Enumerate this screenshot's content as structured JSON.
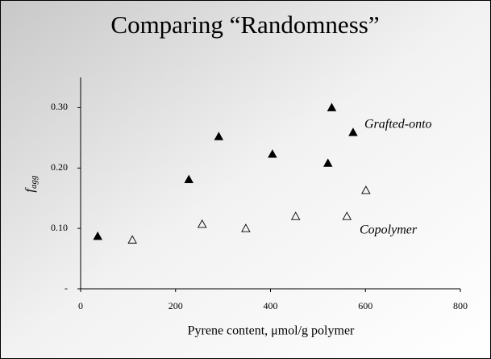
{
  "chart_data": {
    "type": "scatter",
    "title": "Comparing “Randomness”",
    "x_label": "Pyrene content, μmol/g polymer",
    "y_label": {
      "main": "f",
      "subscript": "agg"
    },
    "xlim": [
      0,
      800
    ],
    "xticks": [
      0,
      200,
      400,
      600,
      800
    ],
    "ylim": [
      0,
      0.35
    ],
    "yticks": [
      {
        "value": 0,
        "label": "-"
      },
      {
        "value": 0.1,
        "label": "0.10"
      },
      {
        "value": 0.2,
        "label": "0.20"
      },
      {
        "value": 0.3,
        "label": "0.30"
      }
    ],
    "series": [
      {
        "name": "Grafted-onto",
        "color": "#000000",
        "fill": "#000000",
        "x": [
          36,
          228,
          291,
          404,
          521,
          529,
          574
        ],
        "values": [
          0.087,
          0.181,
          0.252,
          0.223,
          0.208,
          0.3,
          0.259
        ]
      },
      {
        "name": "Copolymer",
        "color": "#000000",
        "fill": "none",
        "x": [
          109,
          256,
          348,
          453,
          561,
          601
        ],
        "values": [
          0.081,
          0.107,
          0.1,
          0.12,
          0.12,
          0.163
        ]
      }
    ]
  }
}
